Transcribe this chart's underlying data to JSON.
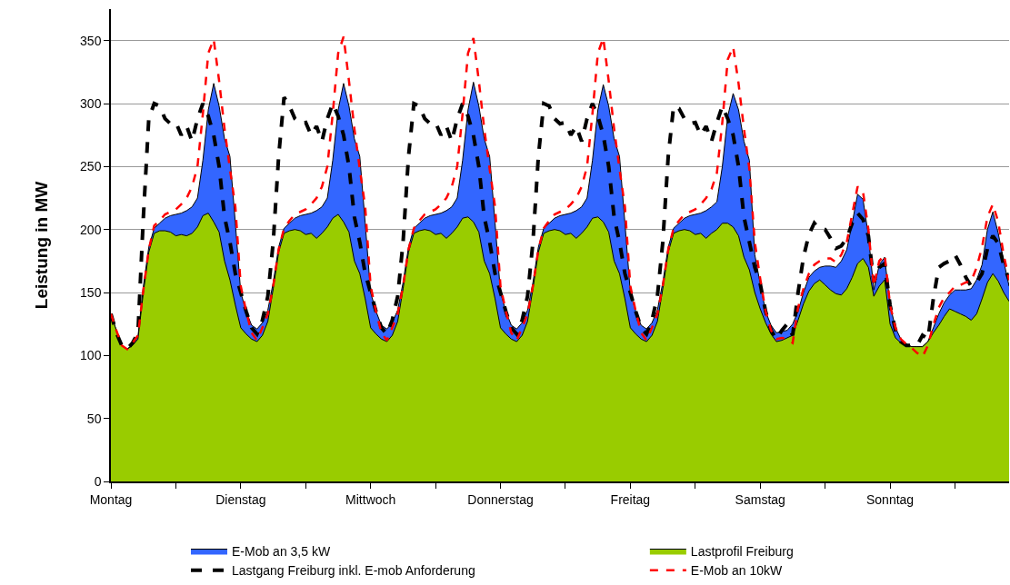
{
  "chart_data": {
    "type": "area",
    "ylabel": "Leistung in MW",
    "categories": [
      "Montag",
      null,
      null,
      null,
      null,
      null,
      null,
      null,
      null,
      null,
      null,
      null,
      null,
      null,
      null,
      null,
      null,
      null,
      null,
      null,
      null,
      null,
      null,
      null,
      "Dienstag",
      null,
      null,
      null,
      null,
      null,
      null,
      null,
      null,
      null,
      null,
      null,
      null,
      null,
      null,
      null,
      null,
      null,
      null,
      null,
      null,
      null,
      null,
      null,
      "Mittwoch",
      null,
      null,
      null,
      null,
      null,
      null,
      null,
      null,
      null,
      null,
      null,
      null,
      null,
      null,
      null,
      null,
      null,
      null,
      null,
      null,
      null,
      null,
      null,
      "Donnerstag",
      null,
      null,
      null,
      null,
      null,
      null,
      null,
      null,
      null,
      null,
      null,
      null,
      null,
      null,
      null,
      null,
      null,
      null,
      null,
      null,
      null,
      null,
      null,
      "Freitag",
      null,
      null,
      null,
      null,
      null,
      null,
      null,
      null,
      null,
      null,
      null,
      null,
      null,
      null,
      null,
      null,
      null,
      null,
      null,
      null,
      null,
      null,
      null,
      "Samstag",
      null,
      null,
      null,
      null,
      null,
      null,
      null,
      null,
      null,
      null,
      null,
      null,
      null,
      null,
      null,
      null,
      null,
      null,
      null,
      null,
      null,
      null,
      null,
      "Sonntag",
      null,
      null,
      null,
      null,
      null,
      null,
      null,
      null,
      null,
      null,
      null,
      null,
      null,
      null,
      null,
      null,
      null,
      null,
      null,
      null,
      null,
      null
    ],
    "series": [
      {
        "name": "E-Mob an 3,5 kW",
        "color": "#3366ff",
        "values": [
          133,
          120,
          108,
          105,
          109,
          115,
          155,
          186,
          201,
          205,
          209,
          211,
          212,
          213,
          215,
          218,
          225,
          255,
          295,
          316,
          298,
          272,
          258,
          205,
          150,
          135,
          124,
          121,
          126,
          136,
          158,
          186,
          201,
          205,
          209,
          211,
          212,
          213,
          215,
          218,
          225,
          255,
          295,
          316,
          298,
          272,
          258,
          205,
          150,
          135,
          124,
          121,
          126,
          136,
          158,
          186,
          201,
          205,
          209,
          211,
          212,
          213,
          215,
          218,
          225,
          255,
          295,
          317,
          298,
          272,
          258,
          205,
          150,
          135,
          124,
          121,
          126,
          136,
          158,
          186,
          201,
          205,
          209,
          211,
          212,
          213,
          215,
          218,
          225,
          255,
          295,
          315,
          298,
          272,
          258,
          205,
          150,
          135,
          124,
          121,
          126,
          136,
          158,
          186,
          201,
          205,
          209,
          211,
          212,
          213,
          215,
          218,
          222,
          250,
          290,
          308,
          295,
          270,
          255,
          180,
          157,
          135,
          124,
          118,
          119,
          120,
          125,
          135,
          150,
          162,
          167,
          170,
          171,
          171,
          170,
          175,
          184,
          205,
          228,
          224,
          195,
          152,
          172,
          178,
          140,
          122,
          113,
          109,
          107,
          107,
          107,
          111,
          122,
          133,
          142,
          148,
          152,
          152,
          152,
          153,
          160,
          172,
          200,
          214,
          197,
          175,
          155
        ]
      },
      {
        "name": "Lastprofil Freiburg",
        "color": "#99cc00",
        "values": [
          133,
          120,
          108,
          105,
          108,
          113,
          150,
          182,
          197,
          199,
          199,
          198,
          195,
          196,
          195,
          197,
          202,
          211,
          213,
          206,
          198,
          175,
          160,
          140,
          122,
          117,
          113,
          111,
          116,
          127,
          153,
          182,
          197,
          199,
          200,
          199,
          196,
          197,
          193,
          197,
          202,
          209,
          212,
          206,
          198,
          175,
          165,
          145,
          122,
          117,
          113,
          111,
          116,
          127,
          153,
          182,
          197,
          199,
          200,
          199,
          196,
          197,
          193,
          197,
          202,
          209,
          210,
          206,
          198,
          175,
          165,
          145,
          122,
          117,
          113,
          111,
          116,
          127,
          153,
          182,
          197,
          199,
          200,
          199,
          196,
          197,
          193,
          197,
          202,
          209,
          210,
          206,
          198,
          175,
          165,
          145,
          122,
          117,
          113,
          111,
          116,
          127,
          153,
          182,
          197,
          199,
          200,
          199,
          196,
          197,
          193,
          197,
          200,
          205,
          205,
          202,
          195,
          178,
          168,
          150,
          137,
          126,
          117,
          111,
          112,
          114,
          116,
          128,
          141,
          151,
          157,
          160,
          156,
          152,
          149,
          148,
          153,
          162,
          173,
          177,
          170,
          147,
          155,
          160,
          125,
          114,
          110,
          108,
          107,
          107,
          107,
          111,
          118,
          124,
          131,
          137,
          135,
          133,
          131,
          128,
          133,
          145,
          158,
          165,
          159,
          150,
          143
        ]
      },
      {
        "name": "Lastgang Freiburg inkl. E-mob Anforderung",
        "type": "line",
        "line_style": "dashed",
        "color": "#000000",
        "values": [
          133,
          118,
          108,
          105,
          110,
          118,
          210,
          288,
          300,
          298,
          288,
          284,
          285,
          275,
          282,
          270,
          288,
          300,
          290,
          275,
          250,
          210,
          190,
          165,
          150,
          135,
          122,
          117,
          128,
          147,
          190,
          258,
          305,
          298,
          288,
          284,
          285,
          275,
          282,
          270,
          288,
          300,
          290,
          275,
          250,
          210,
          190,
          165,
          150,
          135,
          122,
          117,
          128,
          147,
          190,
          258,
          300,
          298,
          288,
          284,
          285,
          275,
          282,
          270,
          288,
          300,
          290,
          275,
          250,
          210,
          190,
          165,
          150,
          135,
          122,
          117,
          128,
          147,
          190,
          258,
          300,
          298,
          288,
          284,
          285,
          275,
          282,
          270,
          288,
          300,
          290,
          275,
          250,
          210,
          190,
          165,
          150,
          135,
          122,
          117,
          128,
          147,
          190,
          258,
          298,
          296,
          288,
          284,
          285,
          275,
          282,
          270,
          285,
          298,
          288,
          275,
          250,
          210,
          190,
          170,
          157,
          135,
          120,
          113,
          120,
          125,
          116,
          150,
          178,
          196,
          205,
          200,
          200,
          193,
          185,
          187,
          193,
          205,
          213,
          208,
          195,
          158,
          170,
          173,
          140,
          120,
          111,
          108,
          108,
          108,
          116,
          113,
          145,
          170,
          173,
          175,
          180,
          172,
          162,
          155,
          158,
          165,
          185,
          195,
          189,
          172,
          160
        ]
      },
      {
        "name": "E-Mob an 10kW",
        "type": "line",
        "line_style": "dashed",
        "color": "#ff0000",
        "values": [
          133,
          120,
          108,
          105,
          110,
          116,
          152,
          184,
          203,
          207,
          212,
          214,
          216,
          220,
          225,
          234,
          250,
          292,
          340,
          351,
          318,
          280,
          248,
          218,
          155,
          135,
          118,
          112,
          122,
          133,
          155,
          184,
          201,
          207,
          212,
          214,
          216,
          220,
          225,
          234,
          250,
          292,
          340,
          353,
          318,
          280,
          248,
          218,
          155,
          135,
          118,
          112,
          122,
          133,
          155,
          184,
          201,
          207,
          212,
          214,
          216,
          220,
          225,
          234,
          250,
          292,
          340,
          352,
          318,
          280,
          248,
          218,
          155,
          135,
          118,
          112,
          122,
          133,
          155,
          184,
          201,
          207,
          212,
          214,
          216,
          220,
          225,
          234,
          250,
          292,
          340,
          352,
          318,
          280,
          248,
          218,
          155,
          135,
          118,
          112,
          122,
          133,
          155,
          184,
          201,
          207,
          212,
          214,
          216,
          220,
          225,
          232,
          245,
          285,
          335,
          345,
          316,
          280,
          248,
          190,
          161,
          135,
          120,
          113,
          114,
          113,
          110,
          138,
          153,
          165,
          172,
          175,
          177,
          177,
          174,
          180,
          190,
          212,
          234,
          230,
          200,
          155,
          175,
          180,
          140,
          122,
          113,
          109,
          106,
          102,
          99,
          108,
          124,
          138,
          146,
          150,
          155,
          156,
          158,
          159,
          170,
          186,
          210,
          220,
          206,
          180,
          160
        ]
      }
    ],
    "ylim": [
      0,
      375
    ],
    "yticks": [
      0,
      50,
      100,
      150,
      200,
      250,
      300,
      350
    ],
    "grid": "y",
    "legend": "bottom",
    "marker": "none"
  }
}
